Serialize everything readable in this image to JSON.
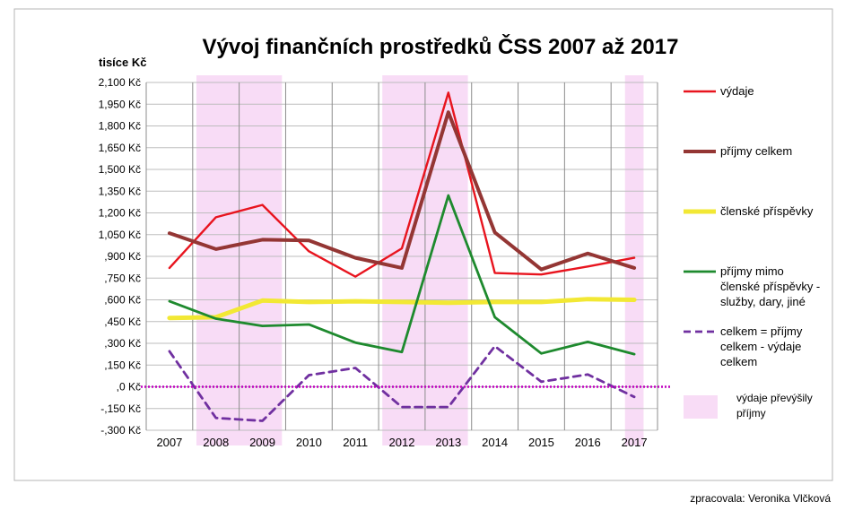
{
  "chart_data": {
    "type": "line",
    "title": "Vývoj finančních prostředků ČSS 2007 až 2017",
    "ylabel": "tisíce Kč",
    "xlabel": "",
    "categories": [
      "2007",
      "2008",
      "2009",
      "2010",
      "2011",
      "2012",
      "2013",
      "2014",
      "2015",
      "2016",
      "2017"
    ],
    "ylim": [
      -300,
      2100
    ],
    "yticks": [
      -300,
      -150,
      0,
      150,
      300,
      450,
      600,
      750,
      900,
      1050,
      1200,
      1350,
      1500,
      1650,
      1800,
      1950,
      2100
    ],
    "ytick_labels": [
      "-,300 Kč",
      "-,150 Kč",
      ",0 Kč",
      ",150 Kč",
      ",300 Kč",
      ",450 Kč",
      ",600 Kč",
      ",750 Kč",
      ",900 Kč",
      "1,050 Kč",
      "1,200 Kč",
      "1,350 Kč",
      "1,500 Kč",
      "1,650 Kč",
      "1,800 Kč",
      "1,950 Kč",
      "2,100 Kč"
    ],
    "grid": true,
    "legend_position": "right",
    "series": [
      {
        "name": "výdaje",
        "color": "#e8141e",
        "style": "solid",
        "width": 2.4,
        "values": [
          820,
          1170,
          1255,
          935,
          760,
          955,
          2030,
          785,
          775,
          830,
          890
        ]
      },
      {
        "name": "příjmy celkem",
        "color": "#943634",
        "style": "solid",
        "width": 4,
        "values": [
          1060,
          950,
          1015,
          1010,
          890,
          820,
          1895,
          1065,
          810,
          920,
          820
        ]
      },
      {
        "name": "členské příspěvky",
        "color": "#f2e834",
        "style": "solid",
        "width": 5,
        "values": [
          475,
          480,
          595,
          585,
          590,
          585,
          580,
          585,
          585,
          605,
          600
        ]
      },
      {
        "name": "příjmy mimo členské příspěvky - služby, dary, jiné",
        "color": "#1e8a2e",
        "style": "solid",
        "width": 2.8,
        "values": [
          590,
          470,
          420,
          430,
          305,
          240,
          1320,
          480,
          230,
          310,
          225
        ]
      },
      {
        "name": "celkem = příjmy celkem - výdaje celkem",
        "color": "#7030a0",
        "style": "dashed",
        "width": 2.8,
        "values": [
          245,
          -215,
          -235,
          80,
          130,
          -140,
          -140,
          280,
          35,
          85,
          -70
        ]
      }
    ],
    "highlight": {
      "name": "výdaje převýšily příjmy",
      "color": "#f8dcf6",
      "categories": [
        "2008",
        "2009",
        "2012",
        "2013",
        "2017"
      ]
    },
    "zero_line_color": "#c000c0",
    "annotation": "zpracovala: Veronika Vlčková"
  }
}
